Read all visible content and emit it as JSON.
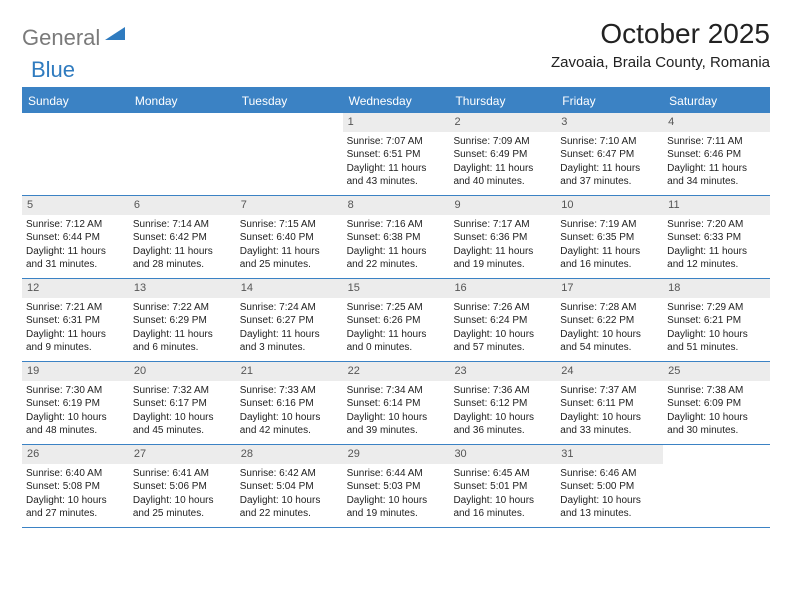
{
  "logo": {
    "text1": "General",
    "text2": "Blue",
    "color1": "#7a7a7a",
    "color2": "#2f7bbf",
    "shape_color": "#2f7bbf"
  },
  "title": "October 2025",
  "location": "Zavoaia, Braila County, Romania",
  "header_bg": "#3b82c4",
  "daynum_bg": "#ececec",
  "border_color": "#3b82c4",
  "day_names": [
    "Sunday",
    "Monday",
    "Tuesday",
    "Wednesday",
    "Thursday",
    "Friday",
    "Saturday"
  ],
  "weeks": [
    [
      {
        "n": "",
        "lines": []
      },
      {
        "n": "",
        "lines": []
      },
      {
        "n": "",
        "lines": []
      },
      {
        "n": "1",
        "lines": [
          "Sunrise: 7:07 AM",
          "Sunset: 6:51 PM",
          "Daylight: 11 hours",
          "and 43 minutes."
        ]
      },
      {
        "n": "2",
        "lines": [
          "Sunrise: 7:09 AM",
          "Sunset: 6:49 PM",
          "Daylight: 11 hours",
          "and 40 minutes."
        ]
      },
      {
        "n": "3",
        "lines": [
          "Sunrise: 7:10 AM",
          "Sunset: 6:47 PM",
          "Daylight: 11 hours",
          "and 37 minutes."
        ]
      },
      {
        "n": "4",
        "lines": [
          "Sunrise: 7:11 AM",
          "Sunset: 6:46 PM",
          "Daylight: 11 hours",
          "and 34 minutes."
        ]
      }
    ],
    [
      {
        "n": "5",
        "lines": [
          "Sunrise: 7:12 AM",
          "Sunset: 6:44 PM",
          "Daylight: 11 hours",
          "and 31 minutes."
        ]
      },
      {
        "n": "6",
        "lines": [
          "Sunrise: 7:14 AM",
          "Sunset: 6:42 PM",
          "Daylight: 11 hours",
          "and 28 minutes."
        ]
      },
      {
        "n": "7",
        "lines": [
          "Sunrise: 7:15 AM",
          "Sunset: 6:40 PM",
          "Daylight: 11 hours",
          "and 25 minutes."
        ]
      },
      {
        "n": "8",
        "lines": [
          "Sunrise: 7:16 AM",
          "Sunset: 6:38 PM",
          "Daylight: 11 hours",
          "and 22 minutes."
        ]
      },
      {
        "n": "9",
        "lines": [
          "Sunrise: 7:17 AM",
          "Sunset: 6:36 PM",
          "Daylight: 11 hours",
          "and 19 minutes."
        ]
      },
      {
        "n": "10",
        "lines": [
          "Sunrise: 7:19 AM",
          "Sunset: 6:35 PM",
          "Daylight: 11 hours",
          "and 16 minutes."
        ]
      },
      {
        "n": "11",
        "lines": [
          "Sunrise: 7:20 AM",
          "Sunset: 6:33 PM",
          "Daylight: 11 hours",
          "and 12 minutes."
        ]
      }
    ],
    [
      {
        "n": "12",
        "lines": [
          "Sunrise: 7:21 AM",
          "Sunset: 6:31 PM",
          "Daylight: 11 hours",
          "and 9 minutes."
        ]
      },
      {
        "n": "13",
        "lines": [
          "Sunrise: 7:22 AM",
          "Sunset: 6:29 PM",
          "Daylight: 11 hours",
          "and 6 minutes."
        ]
      },
      {
        "n": "14",
        "lines": [
          "Sunrise: 7:24 AM",
          "Sunset: 6:27 PM",
          "Daylight: 11 hours",
          "and 3 minutes."
        ]
      },
      {
        "n": "15",
        "lines": [
          "Sunrise: 7:25 AM",
          "Sunset: 6:26 PM",
          "Daylight: 11 hours",
          "and 0 minutes."
        ]
      },
      {
        "n": "16",
        "lines": [
          "Sunrise: 7:26 AM",
          "Sunset: 6:24 PM",
          "Daylight: 10 hours",
          "and 57 minutes."
        ]
      },
      {
        "n": "17",
        "lines": [
          "Sunrise: 7:28 AM",
          "Sunset: 6:22 PM",
          "Daylight: 10 hours",
          "and 54 minutes."
        ]
      },
      {
        "n": "18",
        "lines": [
          "Sunrise: 7:29 AM",
          "Sunset: 6:21 PM",
          "Daylight: 10 hours",
          "and 51 minutes."
        ]
      }
    ],
    [
      {
        "n": "19",
        "lines": [
          "Sunrise: 7:30 AM",
          "Sunset: 6:19 PM",
          "Daylight: 10 hours",
          "and 48 minutes."
        ]
      },
      {
        "n": "20",
        "lines": [
          "Sunrise: 7:32 AM",
          "Sunset: 6:17 PM",
          "Daylight: 10 hours",
          "and 45 minutes."
        ]
      },
      {
        "n": "21",
        "lines": [
          "Sunrise: 7:33 AM",
          "Sunset: 6:16 PM",
          "Daylight: 10 hours",
          "and 42 minutes."
        ]
      },
      {
        "n": "22",
        "lines": [
          "Sunrise: 7:34 AM",
          "Sunset: 6:14 PM",
          "Daylight: 10 hours",
          "and 39 minutes."
        ]
      },
      {
        "n": "23",
        "lines": [
          "Sunrise: 7:36 AM",
          "Sunset: 6:12 PM",
          "Daylight: 10 hours",
          "and 36 minutes."
        ]
      },
      {
        "n": "24",
        "lines": [
          "Sunrise: 7:37 AM",
          "Sunset: 6:11 PM",
          "Daylight: 10 hours",
          "and 33 minutes."
        ]
      },
      {
        "n": "25",
        "lines": [
          "Sunrise: 7:38 AM",
          "Sunset: 6:09 PM",
          "Daylight: 10 hours",
          "and 30 minutes."
        ]
      }
    ],
    [
      {
        "n": "26",
        "lines": [
          "Sunrise: 6:40 AM",
          "Sunset: 5:08 PM",
          "Daylight: 10 hours",
          "and 27 minutes."
        ]
      },
      {
        "n": "27",
        "lines": [
          "Sunrise: 6:41 AM",
          "Sunset: 5:06 PM",
          "Daylight: 10 hours",
          "and 25 minutes."
        ]
      },
      {
        "n": "28",
        "lines": [
          "Sunrise: 6:42 AM",
          "Sunset: 5:04 PM",
          "Daylight: 10 hours",
          "and 22 minutes."
        ]
      },
      {
        "n": "29",
        "lines": [
          "Sunrise: 6:44 AM",
          "Sunset: 5:03 PM",
          "Daylight: 10 hours",
          "and 19 minutes."
        ]
      },
      {
        "n": "30",
        "lines": [
          "Sunrise: 6:45 AM",
          "Sunset: 5:01 PM",
          "Daylight: 10 hours",
          "and 16 minutes."
        ]
      },
      {
        "n": "31",
        "lines": [
          "Sunrise: 6:46 AM",
          "Sunset: 5:00 PM",
          "Daylight: 10 hours",
          "and 13 minutes."
        ]
      },
      {
        "n": "",
        "lines": []
      }
    ]
  ]
}
